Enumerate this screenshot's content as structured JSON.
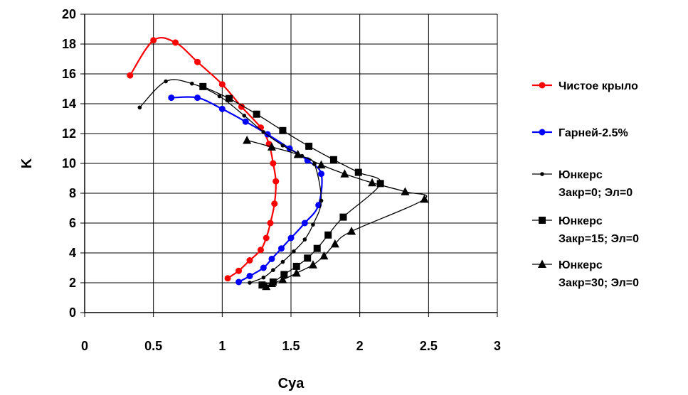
{
  "chart_data": {
    "type": "line",
    "title": "",
    "xlabel": "Cya",
    "ylabel": "K",
    "xlim": [
      0,
      3
    ],
    "ylim": [
      0,
      20
    ],
    "x_ticks": [
      "0",
      "0.5",
      "1",
      "1.5",
      "2",
      "2.5",
      "3"
    ],
    "y_ticks": [
      "0",
      "2",
      "4",
      "6",
      "8",
      "10",
      "12",
      "14",
      "16",
      "18",
      "20"
    ],
    "grid": true,
    "legend_position": "right",
    "series": [
      {
        "name": "Чистое крыло",
        "color": "#ff0000",
        "marker": "circle",
        "points": [
          [
            0.33,
            15.9
          ],
          [
            0.5,
            18.25
          ],
          [
            0.66,
            18.1
          ],
          [
            0.82,
            16.8
          ],
          [
            1.0,
            15.3
          ],
          [
            1.14,
            13.8
          ],
          [
            1.28,
            12.4
          ],
          [
            1.34,
            11.3
          ],
          [
            1.37,
            10.0
          ],
          [
            1.39,
            8.8
          ],
          [
            1.38,
            7.3
          ],
          [
            1.35,
            6.0
          ],
          [
            1.32,
            5.0
          ],
          [
            1.28,
            4.2
          ],
          [
            1.2,
            3.5
          ],
          [
            1.12,
            2.8
          ],
          [
            1.04,
            2.3
          ]
        ]
      },
      {
        "name": "Гарней-2.5%",
        "color": "#0000ff",
        "marker": "circle",
        "points": [
          [
            0.63,
            14.4
          ],
          [
            0.82,
            14.4
          ],
          [
            1.0,
            13.65
          ],
          [
            1.17,
            12.8
          ],
          [
            1.33,
            11.95
          ],
          [
            1.49,
            11.0
          ],
          [
            1.62,
            10.2
          ],
          [
            1.72,
            9.3
          ],
          [
            1.7,
            7.2
          ],
          [
            1.6,
            6.0
          ],
          [
            1.5,
            5.0
          ],
          [
            1.43,
            4.3
          ],
          [
            1.36,
            3.6
          ],
          [
            1.3,
            3.0
          ],
          [
            1.2,
            2.45
          ],
          [
            1.12,
            2.05
          ]
        ]
      },
      {
        "name": "Юнкерс Закр=0; Эл=0",
        "color": "#000000",
        "marker": "small-dot",
        "points": [
          [
            0.4,
            13.75
          ],
          [
            0.59,
            15.5
          ],
          [
            0.78,
            15.35
          ],
          [
            0.98,
            14.5
          ],
          [
            1.16,
            13.2
          ],
          [
            1.3,
            12.1
          ],
          [
            1.44,
            11.2
          ],
          [
            1.58,
            10.5
          ],
          [
            1.67,
            9.95
          ],
          [
            1.72,
            7.5
          ],
          [
            1.66,
            5.9
          ],
          [
            1.6,
            4.9
          ],
          [
            1.52,
            4.1
          ],
          [
            1.44,
            3.4
          ],
          [
            1.37,
            2.85
          ],
          [
            1.3,
            2.35
          ],
          [
            1.2,
            2.0
          ]
        ]
      },
      {
        "name": "Юнкерс Закр=15; Эл=0",
        "color": "#000000",
        "marker": "square",
        "points": [
          [
            0.86,
            15.15
          ],
          [
            1.05,
            14.35
          ],
          [
            1.25,
            13.3
          ],
          [
            1.44,
            12.2
          ],
          [
            1.63,
            11.15
          ],
          [
            1.81,
            10.25
          ],
          [
            1.99,
            9.4
          ],
          [
            2.15,
            8.65
          ],
          [
            1.88,
            6.4
          ],
          [
            1.77,
            5.2
          ],
          [
            1.69,
            4.3
          ],
          [
            1.62,
            3.65
          ],
          [
            1.54,
            3.1
          ],
          [
            1.45,
            2.55
          ],
          [
            1.37,
            2.05
          ],
          [
            1.29,
            1.85
          ]
        ]
      },
      {
        "name": "Юнкерс Закр=30; Эл=0",
        "color": "#000000",
        "marker": "triangle",
        "points": [
          [
            1.18,
            11.55
          ],
          [
            1.36,
            11.1
          ],
          [
            1.55,
            10.6
          ],
          [
            1.72,
            9.9
          ],
          [
            1.89,
            9.3
          ],
          [
            2.09,
            8.7
          ],
          [
            2.33,
            8.1
          ],
          [
            2.47,
            7.6
          ],
          [
            1.94,
            5.45
          ],
          [
            1.82,
            4.6
          ],
          [
            1.74,
            3.8
          ],
          [
            1.66,
            3.2
          ],
          [
            1.54,
            2.65
          ],
          [
            1.44,
            2.2
          ],
          [
            1.36,
            1.95
          ],
          [
            1.32,
            1.75
          ]
        ]
      }
    ]
  }
}
